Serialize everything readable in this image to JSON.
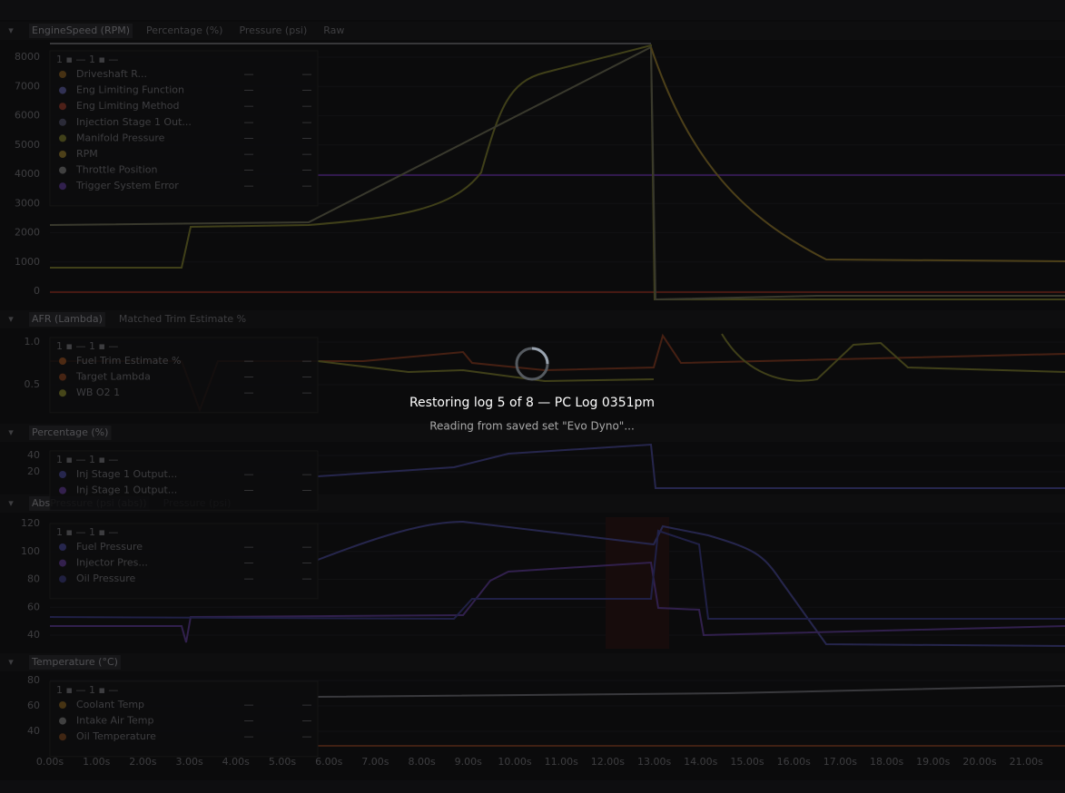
{
  "panels": [
    {
      "tabs": [
        "EngineSpeed (RPM)",
        "Percentage (%)",
        "Pressure (psi)",
        "Raw"
      ],
      "yticks": [
        "8000",
        "7000",
        "6000",
        "5000",
        "4000",
        "3000",
        "2000",
        "1000",
        "0"
      ],
      "legend": [
        {
          "label": "Driveshaft R...",
          "color": "#b07a30",
          "values": [
            "—",
            "—"
          ]
        },
        {
          "label": "Eng Limiting Function",
          "color": "#7a7ad0",
          "values": [
            "—",
            "—"
          ]
        },
        {
          "label": "Eng Limiting Method",
          "color": "#c0503c",
          "values": [
            "—",
            "—"
          ]
        },
        {
          "label": "Injection Stage 1 Out...",
          "color": "#6a6a8a",
          "values": [
            "—",
            "—"
          ]
        },
        {
          "label": "Manifold Pressure",
          "color": "#a0a040",
          "values": [
            "—",
            "—"
          ]
        },
        {
          "label": "RPM",
          "color": "#c0a040",
          "values": [
            "—",
            "—"
          ]
        },
        {
          "label": "Throttle Position",
          "color": "#a0a0a0",
          "values": [
            "—",
            "—"
          ]
        },
        {
          "label": "Trigger System Error",
          "color": "#7a50c0",
          "values": [
            "—",
            "—"
          ]
        }
      ]
    },
    {
      "tabs": [
        "AFR (Lambda)",
        "Matched Trim Estimate %"
      ],
      "yticks": [
        "1.0",
        "0.5"
      ],
      "legend": [
        {
          "label": "Fuel Trim Estimate %",
          "color": "#c06a30",
          "values": [
            "—",
            "—"
          ]
        },
        {
          "label": "Target Lambda",
          "color": "#b05a30",
          "values": [
            "—",
            "—"
          ]
        },
        {
          "label": "WB O2 1",
          "color": "#b0b040",
          "values": [
            "—",
            "—"
          ]
        }
      ]
    },
    {
      "tabs": [
        "Percentage (%)"
      ],
      "yticks": [
        "40",
        "20"
      ],
      "legend": [
        {
          "label": "Inj Stage 1 Output...",
          "color": "#6060c0",
          "values": [
            "—",
            "—"
          ]
        },
        {
          "label": "Inj Stage 1 Output...",
          "color": "#8050c0",
          "values": [
            "—",
            "—"
          ]
        }
      ]
    },
    {
      "tabs": [
        "AbsPressure (psi (abs))",
        "Pressure (psi)"
      ],
      "yticks": [
        "120",
        "100",
        "80",
        "60",
        "40"
      ],
      "legend": [
        {
          "label": "Fuel Pressure",
          "color": "#6060c0",
          "values": [
            "—",
            "—"
          ]
        },
        {
          "label": "Injector Pres...",
          "color": "#8050c0",
          "values": [
            "—",
            "—"
          ]
        },
        {
          "label": "Oil Pressure",
          "color": "#5050a0",
          "values": [
            "—",
            "—"
          ]
        }
      ]
    },
    {
      "tabs": [
        "Temperature (°C)"
      ],
      "yticks": [
        "80",
        "60",
        "40"
      ],
      "legend": [
        {
          "label": "Coolant Temp",
          "color": "#b08030",
          "values": [
            "—",
            "—"
          ]
        },
        {
          "label": "Intake Air Temp",
          "color": "#a0a0a0",
          "values": [
            "—",
            "—"
          ]
        },
        {
          "label": "Oil Temperature",
          "color": "#a06030",
          "values": [
            "—",
            "—"
          ]
        }
      ]
    }
  ],
  "x_axis": [
    "0.00s",
    "1.00s",
    "2.00s",
    "3.00s",
    "4.00s",
    "5.00s",
    "6.00s",
    "7.00s",
    "8.00s",
    "9.00s",
    "10.00s",
    "11.00s",
    "12.00s",
    "13.00s",
    "14.00s",
    "15.00s",
    "16.00s",
    "17.00s",
    "18.00s",
    "19.00s",
    "20.00s",
    "21.00s"
  ],
  "overlay": {
    "title": "Restoring log 5 of 8 — PC Log 0351pm",
    "subtitle": "Reading from saved set \"Evo Dyno\"..."
  }
}
